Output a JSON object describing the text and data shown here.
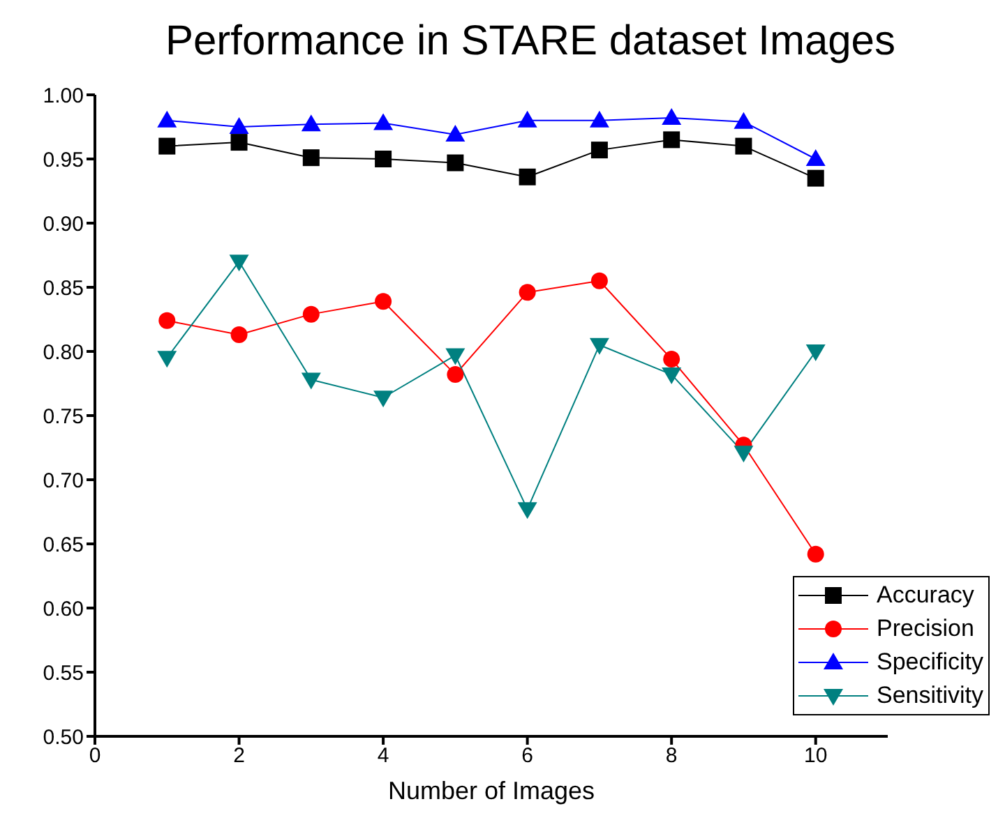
{
  "chart_data": {
    "type": "line",
    "title": "Performance in STARE dataset Images",
    "xlabel": "Number of Images",
    "x": [
      1,
      2,
      3,
      4,
      5,
      6,
      7,
      8,
      9,
      10
    ],
    "series": [
      {
        "name": "Accuracy",
        "color": "#000000",
        "marker": "square",
        "values": [
          0.96,
          0.963,
          0.951,
          0.95,
          0.947,
          0.936,
          0.957,
          0.965,
          0.96,
          0.935
        ]
      },
      {
        "name": "Precision",
        "color": "#ff0000",
        "marker": "circle",
        "values": [
          0.824,
          0.813,
          0.829,
          0.839,
          0.782,
          0.846,
          0.855,
          0.794,
          0.727,
          0.642
        ]
      },
      {
        "name": "Specificity",
        "color": "#0000ff",
        "marker": "triangle",
        "values": [
          0.98,
          0.975,
          0.977,
          0.978,
          0.969,
          0.98,
          0.98,
          0.982,
          0.979,
          0.95
        ]
      },
      {
        "name": "Sensitivity",
        "color": "#008080",
        "marker": "triangle-down",
        "values": [
          0.795,
          0.87,
          0.778,
          0.764,
          0.797,
          0.677,
          0.805,
          0.782,
          0.721,
          0.8
        ]
      }
    ],
    "xlim": [
      0,
      11
    ],
    "xticks": [
      0,
      2,
      4,
      6,
      8,
      10
    ],
    "ylim": [
      0.5,
      1.0
    ],
    "yticks": [
      {
        "value": 0.5,
        "label": "0.50"
      },
      0.55,
      {
        "value": 0.6,
        "label": "0.60"
      },
      0.65,
      {
        "value": 0.7,
        "label": "0.70"
      },
      0.75,
      {
        "value": 0.8,
        "label": "0.80"
      },
      0.85,
      {
        "value": 0.9,
        "label": "0.90"
      },
      0.95,
      {
        "value": 1.0,
        "label": "1.00"
      }
    ],
    "grid": false,
    "legend": "bottom right",
    "line_style": "solid"
  }
}
